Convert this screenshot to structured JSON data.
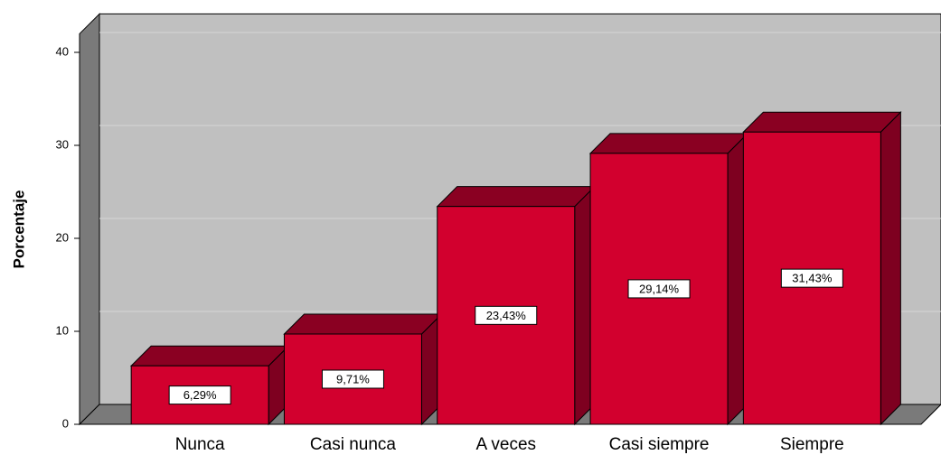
{
  "chart_data": {
    "type": "bar3d",
    "y_label": "Porcentaje",
    "categories": [
      "Nunca",
      "Casi nunca",
      "A veces",
      "Casi siempre",
      "Siempre"
    ],
    "values": [
      6.29,
      9.71,
      23.43,
      29.14,
      31.43
    ],
    "value_labels": [
      "6,29%",
      "9,71%",
      "23,43%",
      "29,14%",
      "31,43%"
    ],
    "color": "#d2002e",
    "ylim": [
      0,
      42
    ],
    "yticks": [
      0,
      10,
      20,
      30,
      40
    ],
    "grid": true
  }
}
